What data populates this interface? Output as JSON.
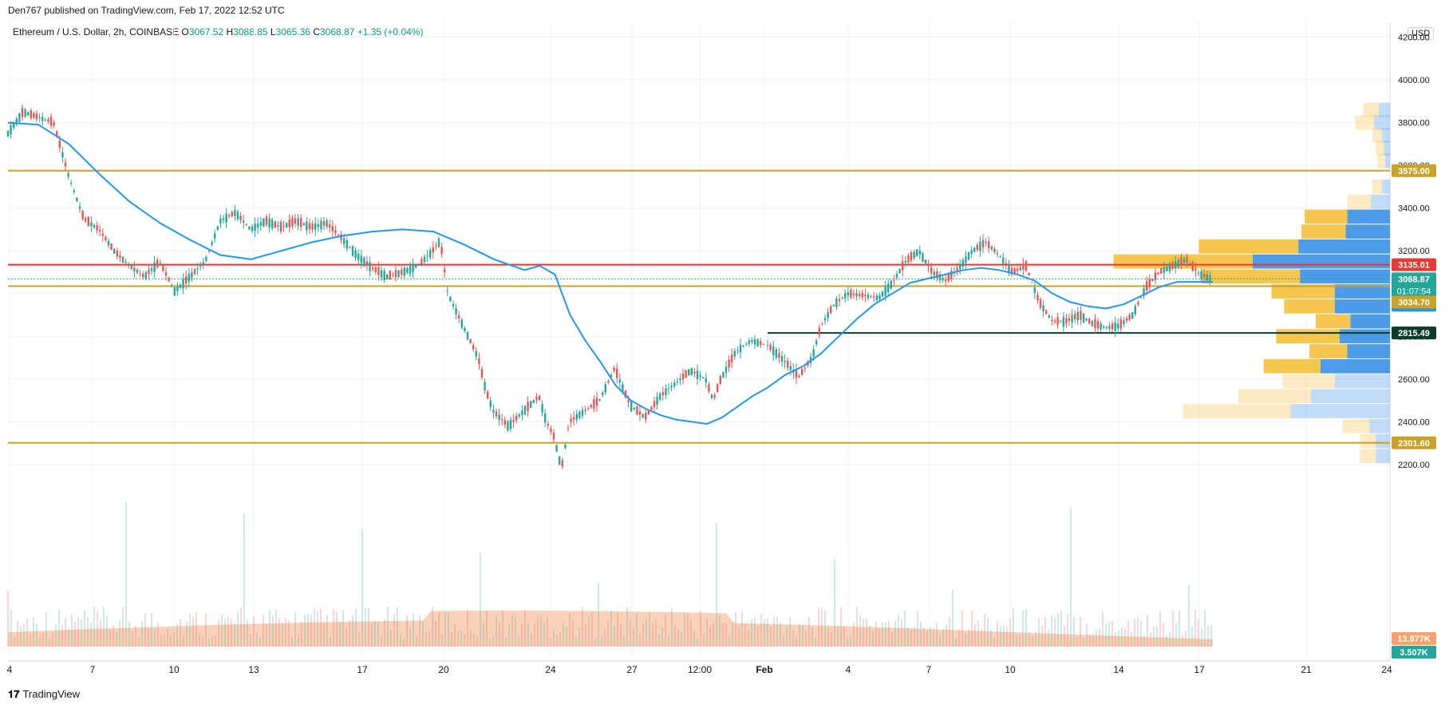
{
  "header": {
    "publisher": "Den767 published on TradingView.com, Feb 17, 2022 12:52 UTC",
    "symbol": "Ethereum / U.S. Dollar, 2h, COINBASE",
    "o_label": "O",
    "o_value": "3067.52",
    "h_label": "H",
    "h_value": "3088.85",
    "l_label": "L",
    "l_value": "3065.36",
    "c_label": "C",
    "c_value": "3068.87",
    "change": "+1.35 (+0.04%)",
    "currency": "USD"
  },
  "footer": {
    "brand": "TradingView"
  },
  "colors": {
    "up": "#26a69a",
    "down": "#ef5350",
    "ma": "#2196f3",
    "level_gold": "#c9a227",
    "level_red": "#e53935",
    "level_dark": "#0d3b2e",
    "vp_gold": "#f5c74f",
    "vp_blue": "#4c9be8",
    "volume_area": "#f7b48c"
  },
  "chart_data": {
    "type": "candlestick",
    "title": "",
    "ylim": [
      2100,
      4250
    ],
    "y_ticks": [
      2200,
      2400,
      2600,
      2800,
      3000,
      3200,
      3400,
      3600,
      3800,
      4000,
      4200
    ],
    "y_tick_labels": [
      "2200.00",
      "2400.00",
      "2600.00",
      "2800.00",
      "3000.00",
      "3200.00",
      "3400.00",
      "3600.00",
      "3800.00",
      "4000.00",
      "4200.00"
    ],
    "x_tick_labels": [
      "4",
      "7",
      "10",
      "13",
      "17",
      "20",
      "24",
      "27",
      "12:00",
      "Feb",
      "4",
      "7",
      "10",
      "14",
      "17",
      "21",
      "24"
    ],
    "horizontal_levels": [
      {
        "value": 3575.0,
        "label": "3575.00",
        "color": "#c9a227"
      },
      {
        "value": 3135.01,
        "label": "3135.01",
        "color": "#e53935"
      },
      {
        "value": 3034.7,
        "label": "3034.70",
        "color": "#c9a227"
      },
      {
        "value": 2815.49,
        "label": "2815.49",
        "color": "#0d3b2e"
      },
      {
        "value": 2301.6,
        "label": "2301.60",
        "color": "#c9a227"
      }
    ],
    "last_price": {
      "value": 3068.87,
      "label": "3068.87",
      "countdown": "01:07:54"
    },
    "ma_value": {
      "value": 3054.57,
      "label": "3054.57"
    },
    "volume_labels": [
      "13.877K",
      "3.507K"
    ],
    "price_path": [
      [
        0,
        3750
      ],
      [
        0.02,
        3850
      ],
      [
        0.06,
        3800
      ],
      [
        0.08,
        3550
      ],
      [
        0.1,
        3350
      ],
      [
        0.12,
        3300
      ],
      [
        0.14,
        3200
      ],
      [
        0.16,
        3130
      ],
      [
        0.18,
        3080
      ],
      [
        0.2,
        3150
      ],
      [
        0.22,
        3010
      ],
      [
        0.24,
        3080
      ],
      [
        0.26,
        3150
      ],
      [
        0.28,
        3340
      ],
      [
        0.3,
        3380
      ],
      [
        0.32,
        3300
      ],
      [
        0.34,
        3340
      ],
      [
        0.36,
        3310
      ],
      [
        0.38,
        3340
      ],
      [
        0.4,
        3310
      ],
      [
        0.42,
        3330
      ],
      [
        0.44,
        3260
      ],
      [
        0.46,
        3180
      ],
      [
        0.48,
        3120
      ],
      [
        0.5,
        3080
      ],
      [
        0.52,
        3100
      ],
      [
        0.54,
        3130
      ],
      [
        0.56,
        3200
      ],
      [
        0.57,
        3250
      ],
      [
        0.58,
        3000
      ],
      [
        0.6,
        2850
      ],
      [
        0.62,
        2700
      ],
      [
        0.63,
        2550
      ],
      [
        0.64,
        2450
      ],
      [
        0.66,
        2380
      ],
      [
        0.68,
        2450
      ],
      [
        0.7,
        2520
      ],
      [
        0.71,
        2400
      ],
      [
        0.72,
        2330
      ],
      [
        0.73,
        2180
      ],
      [
        0.74,
        2400
      ],
      [
        0.76,
        2450
      ],
      [
        0.78,
        2500
      ],
      [
        0.8,
        2650
      ],
      [
        0.82,
        2480
      ],
      [
        0.84,
        2420
      ],
      [
        0.86,
        2520
      ],
      [
        0.88,
        2580
      ],
      [
        0.9,
        2640
      ],
      [
        0.92,
        2600
      ],
      [
        0.93,
        2500
      ],
      [
        0.94,
        2600
      ],
      [
        0.96,
        2730
      ],
      [
        0.98,
        2780
      ],
      [
        1.0,
        2760
      ]
    ],
    "price_path_2": [
      [
        0,
        2760
      ],
      [
        0.04,
        2680
      ],
      [
        0.07,
        2610
      ],
      [
        0.1,
        2700
      ],
      [
        0.12,
        2850
      ],
      [
        0.15,
        2950
      ],
      [
        0.18,
        3000
      ],
      [
        0.22,
        2990
      ],
      [
        0.25,
        2980
      ],
      [
        0.28,
        3050
      ],
      [
        0.31,
        3150
      ],
      [
        0.34,
        3200
      ],
      [
        0.37,
        3100
      ],
      [
        0.4,
        3060
      ],
      [
        0.43,
        3120
      ],
      [
        0.46,
        3200
      ],
      [
        0.49,
        3240
      ],
      [
        0.52,
        3180
      ],
      [
        0.55,
        3100
      ],
      [
        0.58,
        3130
      ],
      [
        0.61,
        2960
      ],
      [
        0.64,
        2870
      ],
      [
        0.67,
        2870
      ],
      [
        0.7,
        2900
      ],
      [
        0.73,
        2860
      ],
      [
        0.76,
        2840
      ],
      [
        0.79,
        2850
      ],
      [
        0.82,
        2900
      ],
      [
        0.85,
        3030
      ],
      [
        0.88,
        3100
      ],
      [
        0.91,
        3130
      ],
      [
        0.94,
        3160
      ],
      [
        0.97,
        3090
      ],
      [
        1.0,
        3069
      ]
    ],
    "ma_path": [
      [
        0,
        3800
      ],
      [
        0.04,
        3790
      ],
      [
        0.08,
        3700
      ],
      [
        0.12,
        3560
      ],
      [
        0.16,
        3430
      ],
      [
        0.2,
        3330
      ],
      [
        0.24,
        3250
      ],
      [
        0.28,
        3180
      ],
      [
        0.32,
        3160
      ],
      [
        0.36,
        3200
      ],
      [
        0.4,
        3240
      ],
      [
        0.44,
        3270
      ],
      [
        0.48,
        3290
      ],
      [
        0.52,
        3300
      ],
      [
        0.56,
        3290
      ],
      [
        0.6,
        3230
      ],
      [
        0.64,
        3160
      ],
      [
        0.68,
        3110
      ],
      [
        0.7,
        3130
      ],
      [
        0.72,
        3090
      ],
      [
        0.74,
        2900
      ],
      [
        0.76,
        2780
      ],
      [
        0.78,
        2680
      ],
      [
        0.8,
        2570
      ],
      [
        0.82,
        2500
      ],
      [
        0.84,
        2460
      ],
      [
        0.86,
        2430
      ],
      [
        0.88,
        2410
      ],
      [
        0.9,
        2400
      ],
      [
        0.92,
        2390
      ],
      [
        0.94,
        2420
      ],
      [
        0.96,
        2470
      ],
      [
        0.98,
        2520
      ],
      [
        1.0,
        2560
      ]
    ],
    "ma_path_2": [
      [
        0,
        2560
      ],
      [
        0.04,
        2620
      ],
      [
        0.08,
        2660
      ],
      [
        0.12,
        2720
      ],
      [
        0.16,
        2800
      ],
      [
        0.2,
        2880
      ],
      [
        0.24,
        2950
      ],
      [
        0.28,
        3000
      ],
      [
        0.32,
        3050
      ],
      [
        0.36,
        3070
      ],
      [
        0.4,
        3090
      ],
      [
        0.44,
        3110
      ],
      [
        0.48,
        3120
      ],
      [
        0.52,
        3110
      ],
      [
        0.56,
        3090
      ],
      [
        0.6,
        3060
      ],
      [
        0.64,
        3000
      ],
      [
        0.68,
        2960
      ],
      [
        0.72,
        2940
      ],
      [
        0.76,
        2930
      ],
      [
        0.8,
        2950
      ],
      [
        0.84,
        2990
      ],
      [
        0.88,
        3030
      ],
      [
        0.92,
        3055
      ],
      [
        1.0,
        3055
      ]
    ],
    "volume_profile": [
      {
        "price": 3860,
        "gold": 0.1,
        "blue": 0.07,
        "faded": true
      },
      {
        "price": 3800,
        "gold": 0.12,
        "blue": 0.1,
        "faded": true
      },
      {
        "price": 3740,
        "gold": 0.06,
        "blue": 0.05,
        "faded": true
      },
      {
        "price": 3680,
        "gold": 0.05,
        "blue": 0.04,
        "faded": true
      },
      {
        "price": 3620,
        "gold": 0.05,
        "blue": 0.03,
        "faded": true
      },
      {
        "price": 3500,
        "gold": 0.06,
        "blue": 0.05,
        "faded": true
      },
      {
        "price": 3430,
        "gold": 0.15,
        "blue": 0.12,
        "faded": true
      },
      {
        "price": 3360,
        "gold": 0.27,
        "blue": 0.27,
        "blue_strong": true
      },
      {
        "price": 3290,
        "gold": 0.28,
        "blue": 0.28
      },
      {
        "price": 3220,
        "gold": 0.63,
        "blue": 0.58
      },
      {
        "price": 3150,
        "gold": 0.88,
        "blue": 0.87
      },
      {
        "price": 3080,
        "gold": 0.62,
        "blue": 0.57
      },
      {
        "price": 3010,
        "gold": 0.4,
        "blue": 0.35
      },
      {
        "price": 2940,
        "gold": 0.32,
        "blue": 0.35
      },
      {
        "price": 2870,
        "gold": 0.22,
        "blue": 0.25
      },
      {
        "price": 2800,
        "gold": 0.4,
        "blue": 0.32
      },
      {
        "price": 2730,
        "gold": 0.24,
        "blue": 0.27
      },
      {
        "price": 2660,
        "gold": 0.36,
        "blue": 0.44
      },
      {
        "price": 2590,
        "gold": 0.33,
        "blue": 0.35,
        "faded": true
      },
      {
        "price": 2520,
        "gold": 0.46,
        "blue": 0.5,
        "faded": true
      },
      {
        "price": 2450,
        "gold": 0.68,
        "blue": 0.63,
        "faded": true
      },
      {
        "price": 2380,
        "gold": 0.17,
        "blue": 0.13,
        "faded": true
      },
      {
        "price": 2310,
        "gold": 0.1,
        "blue": 0.09,
        "faded": true
      },
      {
        "price": 2240,
        "gold": 0.1,
        "blue": 0.09,
        "faded": true
      }
    ]
  }
}
